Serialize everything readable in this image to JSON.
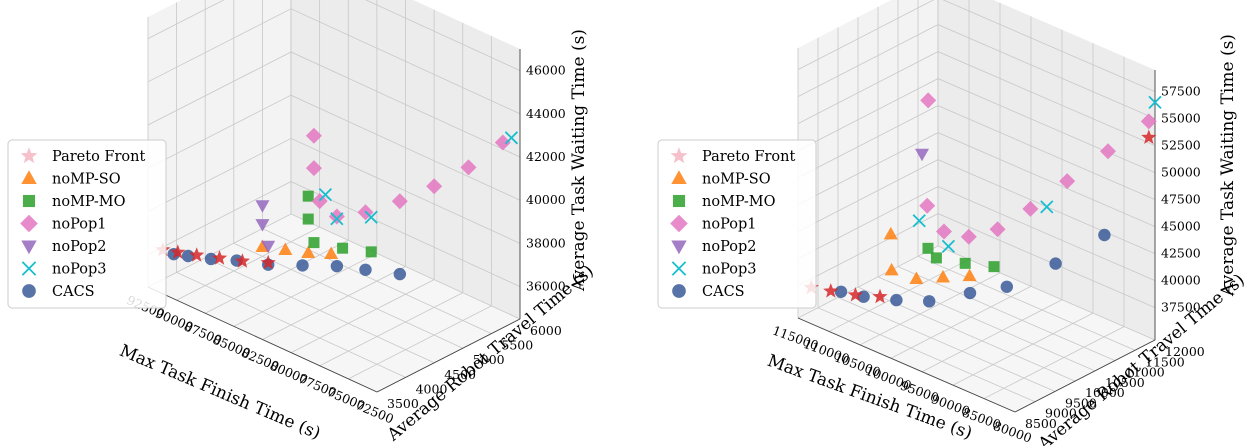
{
  "colors": {
    "pareto": "#f4b6c2",
    "noMP_SO": "#ff7f0e",
    "noMP_MO": "#2ca02c",
    "noPop1": "#e377c2",
    "noPop2": "#9467bd",
    "noPop3": "#17becf",
    "CACS": "#3a5a98",
    "CACS_red": "#d62728"
  },
  "chart_data": [
    {
      "type": "scatter",
      "projection": "3d",
      "xlabel": "Max Task Finish Time (s)",
      "ylabel": "Average Robot Travel Time (s)",
      "zlabel": "Average Task Waiting Time (s)",
      "xticks": [
        "92500",
        "90000",
        "87500",
        "85000",
        "82500",
        "80000",
        "77500",
        "75000",
        "72500"
      ],
      "yticks": [
        "3500",
        "4000",
        "4500",
        "5000",
        "5500",
        "6000"
      ],
      "zticks": [
        "36000",
        "38000",
        "40000",
        "42000",
        "44000",
        "46000"
      ],
      "xlim": [
        72500,
        92500
      ],
      "ylim": [
        3500,
        6000
      ],
      "zlim": [
        35000,
        46000
      ],
      "legend": [
        {
          "label": "Pareto Front",
          "marker": "star",
          "color": "pareto"
        },
        {
          "label": "noMP-SO",
          "marker": "triangle-up",
          "color": "noMP_SO"
        },
        {
          "label": "noMP-MO",
          "marker": "square",
          "color": "noMP_MO"
        },
        {
          "label": "noPop1",
          "marker": "diamond",
          "color": "noPop1"
        },
        {
          "label": "noPop2",
          "marker": "triangle-down",
          "color": "noPop2"
        },
        {
          "label": "noPop3",
          "marker": "x",
          "color": "noPop3"
        },
        {
          "label": "CACS",
          "marker": "circle",
          "color": "CACS"
        }
      ],
      "series": [
        {
          "name": "CACS",
          "marker": "circle",
          "color": "CACS",
          "points": [
            [
              88500,
              4700,
              36500
            ],
            [
              86000,
              4600,
              36200
            ],
            [
              84000,
              4500,
              36000
            ],
            [
              82000,
              4300,
              35800
            ],
            [
              80000,
              4100,
              35600
            ],
            [
              78000,
              3950,
              35500
            ],
            [
              76500,
              3800,
              35400
            ],
            [
              75000,
              3700,
              35300
            ],
            [
              74000,
              3650,
              35200
            ]
          ]
        },
        {
          "name": "Pareto Front",
          "marker": "star",
          "color": "CACS_red",
          "points": [
            [
              80000,
              4100,
              35700
            ],
            [
              78500,
              3950,
              35600
            ],
            [
              77000,
              3850,
              35500
            ],
            [
              75500,
              3750,
              35400
            ],
            [
              74200,
              3680,
              35300
            ],
            [
              73200,
              3620,
              35250
            ]
          ]
        },
        {
          "name": "noMP-SO",
          "marker": "triangle-up",
          "color": "noMP_SO",
          "points": [
            [
              83000,
              4600,
              36200
            ],
            [
              81500,
              4500,
              36000
            ],
            [
              80000,
              4400,
              35900
            ],
            [
              78500,
              4300,
              35800
            ]
          ]
        },
        {
          "name": "noMP-MO",
          "marker": "square",
          "color": "noMP_MO",
          "points": [
            [
              85000,
              4900,
              36400
            ],
            [
              83000,
              4800,
              36200
            ],
            [
              81000,
              4700,
              36100
            ],
            [
              79500,
              4900,
              36600
            ],
            [
              78500,
              5100,
              37200
            ]
          ]
        },
        {
          "name": "noPop1",
          "marker": "diamond",
          "color": "noPop1",
          "points": [
            [
              92000,
              5800,
              42500
            ],
            [
              90000,
              5600,
              41000
            ],
            [
              88000,
              5400,
              39800
            ],
            [
              86000,
              5200,
              38800
            ],
            [
              84000,
              5000,
              38000
            ],
            [
              82000,
              4900,
              37400
            ],
            [
              80000,
              5000,
              37500
            ],
            [
              78000,
              5300,
              38200
            ],
            [
              76500,
              5600,
              39000
            ]
          ]
        },
        {
          "name": "noPop2",
          "marker": "triangle-down",
          "color": "noPop2",
          "points": [
            [
              79000,
              4300,
              36000
            ],
            [
              77500,
              4500,
              36400
            ],
            [
              76500,
              4700,
              36800
            ]
          ]
        },
        {
          "name": "noPop3",
          "marker": "x",
          "color": "noPop3",
          "points": [
            [
              92500,
              5850,
              42800
            ],
            [
              84000,
              5100,
              37600
            ],
            [
              81500,
              5000,
              37000
            ],
            [
              79500,
              5200,
              37400
            ]
          ]
        }
      ]
    },
    {
      "type": "scatter",
      "projection": "3d",
      "xlabel": "Max Task Finish Time (s)",
      "ylabel": "Average Robot Travel Time (s)",
      "zlabel": "Average Task Waiting Time (s)",
      "xticks": [
        "115000",
        "110000",
        "105000",
        "100000",
        "95000",
        "90000",
        "85000",
        "80000"
      ],
      "yticks": [
        "8500",
        "9000",
        "9500",
        "10000",
        "10500",
        "11000",
        "11500",
        "12000"
      ],
      "zticks": [
        "37500",
        "40000",
        "42500",
        "45000",
        "47500",
        "50000",
        "52500",
        "55000",
        "57500"
      ],
      "xlim": [
        80000,
        115000
      ],
      "ylim": [
        8500,
        12000
      ],
      "zlim": [
        37500,
        57500
      ],
      "legend": [
        {
          "label": "Pareto Front",
          "marker": "star",
          "color": "pareto"
        },
        {
          "label": "noMP-SO",
          "marker": "triangle-up",
          "color": "noMP_SO"
        },
        {
          "label": "noMP-MO",
          "marker": "square",
          "color": "noMP_MO"
        },
        {
          "label": "noPop1",
          "marker": "diamond",
          "color": "noPop1"
        },
        {
          "label": "noPop2",
          "marker": "triangle-down",
          "color": "noPop2"
        },
        {
          "label": "noPop3",
          "marker": "x",
          "color": "noPop3"
        },
        {
          "label": "CACS",
          "marker": "circle",
          "color": "CACS"
        }
      ],
      "series": [
        {
          "name": "CACS",
          "marker": "circle",
          "color": "CACS",
          "points": [
            [
              112000,
              11200,
              45000
            ],
            [
              108000,
              10600,
              42500
            ],
            [
              104000,
              10000,
              40500
            ],
            [
              100000,
              9700,
              39500
            ],
            [
              96000,
              9300,
              38500
            ],
            [
              92000,
              9100,
              38000
            ],
            [
              88000,
              8900,
              37700
            ],
            [
              85000,
              8800,
              37600
            ]
          ]
        },
        {
          "name": "Pareto Front",
          "marker": "star",
          "color": "CACS_red",
          "points": [
            [
              114000,
              12000,
              53000
            ],
            [
              90000,
              9000,
              38000
            ],
            [
              87000,
              8850,
              37700
            ],
            [
              84000,
              8700,
              37600
            ],
            [
              81500,
              8600,
              37500
            ]
          ]
        },
        {
          "name": "noMP-SO",
          "marker": "triangle-up",
          "color": "noMP_SO",
          "points": [
            [
              98000,
              10000,
              40000
            ],
            [
              95000,
              9800,
              39500
            ],
            [
              92000,
              9600,
              39000
            ],
            [
              88000,
              9600,
              38800
            ],
            [
              84000,
              10200,
              40000
            ]
          ]
        },
        {
          "name": "noMP-MO",
          "marker": "square",
          "color": "noMP_MO",
          "points": [
            [
              100000,
              10300,
              40800
            ],
            [
              96000,
              10200,
              40300
            ],
            [
              92000,
              10100,
              40000
            ],
            [
              90000,
              10200,
              40200
            ]
          ]
        },
        {
          "name": "noPop1",
          "marker": "diamond",
          "color": "noPop1",
          "points": [
            [
              114000,
              12000,
              54500
            ],
            [
              110000,
              11600,
              51500
            ],
            [
              106000,
              11200,
              48500
            ],
            [
              102000,
              10900,
              45500
            ],
            [
              98000,
              10700,
              43000
            ],
            [
              94000,
              10600,
              41500
            ],
            [
              90000,
              10600,
              41000
            ],
            [
              86000,
              10800,
              42000
            ],
            [
              81000,
              11600,
              49000
            ]
          ]
        },
        {
          "name": "noPop2",
          "marker": "triangle-down",
          "color": "noPop2",
          "points": [
            [
              80000,
              11600,
              43800
            ]
          ]
        },
        {
          "name": "noPop3",
          "marker": "x",
          "color": "noPop3",
          "points": [
            [
              115000,
              12000,
              56500
            ],
            [
              104000,
              11000,
              46000
            ],
            [
              92000,
              10400,
              40500
            ],
            [
              86000,
              10600,
              41000
            ]
          ]
        }
      ]
    }
  ]
}
